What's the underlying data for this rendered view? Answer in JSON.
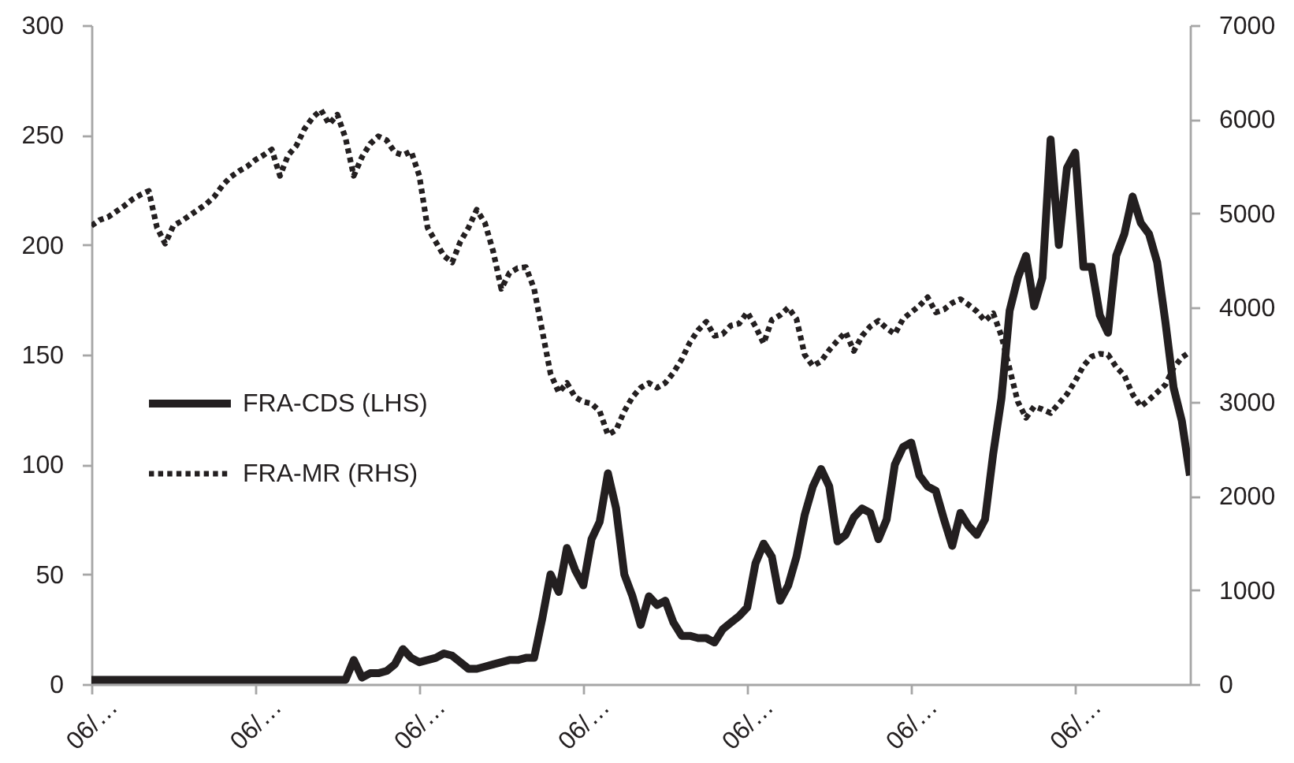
{
  "chart_data": {
    "type": "line",
    "categories": [
      "06/…",
      null,
      null,
      null,
      null,
      null,
      null,
      null,
      null,
      null,
      null,
      null,
      null,
      null,
      null,
      null,
      null,
      null,
      null,
      null,
      "06/…",
      null,
      null,
      null,
      null,
      null,
      null,
      null,
      null,
      null,
      null,
      null,
      null,
      null,
      null,
      null,
      null,
      null,
      null,
      null,
      "06/…",
      null,
      null,
      null,
      null,
      null,
      null,
      null,
      null,
      null,
      null,
      null,
      null,
      null,
      null,
      null,
      null,
      null,
      null,
      null,
      "06/…",
      null,
      null,
      null,
      null,
      null,
      null,
      null,
      null,
      null,
      null,
      null,
      null,
      null,
      null,
      null,
      null,
      null,
      null,
      null,
      "06/…",
      null,
      null,
      null,
      null,
      null,
      null,
      null,
      null,
      null,
      null,
      null,
      null,
      null,
      null,
      null,
      null,
      null,
      null,
      null,
      "06/…",
      null,
      null,
      null,
      null,
      null,
      null,
      null,
      null,
      null,
      null,
      null,
      null,
      null,
      null,
      null,
      null,
      null,
      null,
      null,
      "06/…",
      null,
      null,
      null,
      null,
      null,
      null,
      null,
      null,
      null,
      null,
      null,
      null,
      null,
      null
    ],
    "series": [
      {
        "name": "FRA-CDS (LHS)",
        "color": "#231f20",
        "line_style": "solid",
        "values": [
          2,
          2,
          2,
          2,
          2,
          2,
          2,
          2,
          2,
          2,
          2,
          2,
          2,
          2,
          2,
          2,
          2,
          2,
          2,
          2,
          2,
          2,
          2,
          2,
          2,
          2,
          2,
          2,
          2,
          2,
          2,
          2,
          11,
          3,
          5,
          5,
          6,
          9,
          16,
          12,
          10,
          11,
          12,
          14,
          13,
          10,
          7,
          7,
          8,
          9,
          10,
          11,
          11,
          12,
          12,
          30,
          50,
          42,
          62,
          52,
          45,
          66,
          74,
          96,
          80,
          50,
          40,
          27,
          40,
          36,
          38,
          28,
          22,
          22,
          21,
          21,
          19,
          25,
          28,
          31,
          35,
          55,
          64,
          58,
          38,
          45,
          58,
          77,
          90,
          98,
          90,
          65,
          68,
          76,
          80,
          78,
          66,
          75,
          100,
          108,
          110,
          95,
          90,
          88,
          75,
          63,
          78,
          72,
          68,
          75,
          105,
          130,
          170,
          185,
          195,
          172,
          185,
          248,
          200,
          235,
          242,
          190,
          190,
          168,
          160,
          195,
          205,
          222,
          210,
          205,
          192,
          165,
          135,
          120,
          95
        ]
      },
      {
        "name": "FRA-MR (RHS)",
        "color": "#231f20",
        "line_style": "dotted",
        "axis": "y2",
        "values": [
          4870,
          4930,
          4960,
          5020,
          5080,
          5150,
          5200,
          5240,
          4850,
          4680,
          4870,
          4920,
          4980,
          5040,
          5100,
          5180,
          5300,
          5390,
          5450,
          5500,
          5570,
          5620,
          5680,
          5400,
          5620,
          5720,
          5900,
          6020,
          6100,
          5950,
          6050,
          5800,
          5400,
          5600,
          5740,
          5820,
          5780,
          5650,
          5620,
          5660,
          5400,
          4850,
          4700,
          4550,
          4480,
          4700,
          4850,
          5040,
          4900,
          4600,
          4200,
          4370,
          4420,
          4430,
          4200,
          3750,
          3300,
          3100,
          3200,
          3050,
          3000,
          2980,
          2900,
          2650,
          2700,
          2900,
          3050,
          3150,
          3200,
          3150,
          3200,
          3310,
          3450,
          3630,
          3760,
          3850,
          3700,
          3720,
          3810,
          3830,
          3950,
          3800,
          3620,
          3870,
          3920,
          4000,
          3880,
          3500,
          3380,
          3430,
          3550,
          3650,
          3740,
          3540,
          3700,
          3800,
          3860,
          3780,
          3720,
          3880,
          3950,
          4020,
          4110,
          3950,
          3980,
          4050,
          4090,
          4030,
          3960,
          3860,
          3940,
          3700,
          3350,
          3000,
          2830,
          2950,
          2920,
          2880,
          2980,
          3080,
          3220,
          3380,
          3480,
          3510,
          3500,
          3370,
          3280,
          3080,
          2950,
          3020,
          3100,
          3180,
          3360,
          3470,
          3530
        ]
      }
    ],
    "ylim": [
      0,
      300
    ],
    "yticks": [
      0,
      50,
      100,
      150,
      200,
      250,
      300
    ],
    "y2lim": [
      0,
      7000
    ],
    "y2ticks": [
      0,
      1000,
      2000,
      3000,
      4000,
      5000,
      6000,
      7000
    ],
    "legend": "left"
  }
}
